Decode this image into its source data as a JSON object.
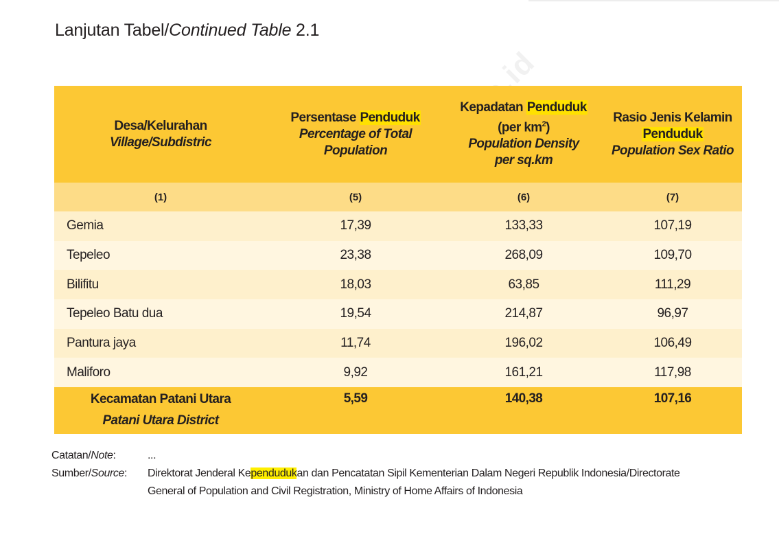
{
  "page": {
    "title_id": "Lanjutan Tabel/",
    "title_en": "Continued Table",
    "title_num": " 2.1",
    "watermark": "https://haltengkab.bps.go.id"
  },
  "colors": {
    "header_bg": "#fcc834",
    "subheader_bg": "#fddc87",
    "row_alt_a": "#fef0cc",
    "row_alt_b": "#fff6e0",
    "highlight": "#ffe100"
  },
  "table": {
    "headers": [
      {
        "id": "Desa/Kelurahan",
        "en": "Village/Subdistric"
      },
      {
        "id_pre": "Persentase ",
        "id_hl": "Penduduk",
        "en1": "Percentage of Total",
        "en2": "Population"
      },
      {
        "id_pre": "Kepadatan ",
        "id_hl": "Penduduk",
        "unit_pre": "(per km",
        "unit_sup": "2",
        "unit_post": ")",
        "en1": "Population Density",
        "en2": "per sq.km"
      },
      {
        "id1": "Rasio Jenis Kelamin",
        "id_hl": "Penduduk",
        "en": "Population Sex Ratio"
      }
    ],
    "column_numbers": [
      "(1)",
      "(5)",
      "(6)",
      "(7)"
    ],
    "rows": [
      {
        "village": "Gemia",
        "pct": "17,39",
        "density": "133,33",
        "sex_ratio": "107,19"
      },
      {
        "village": "Tepeleo",
        "pct": "23,38",
        "density": "268,09",
        "sex_ratio": "109,70"
      },
      {
        "village": "Bilifitu",
        "pct": "18,03",
        "density": "63,85",
        "sex_ratio": "111,29"
      },
      {
        "village": "Tepeleo Batu dua",
        "pct": "19,54",
        "density": "214,87",
        "sex_ratio": "96,97"
      },
      {
        "village": "Pantura jaya",
        "pct": "11,74",
        "density": "196,02",
        "sex_ratio": "106,49"
      },
      {
        "village": "Maliforo",
        "pct": "9,92",
        "density": "161,21",
        "sex_ratio": "117,98"
      }
    ],
    "total": {
      "label_id": "Kecamatan Patani Utara",
      "label_en": "Patani Utara  District",
      "pct": "5,59",
      "density": "140,38",
      "sex_ratio": "107,16"
    }
  },
  "notes": {
    "note_label_id": "Catatan/",
    "note_label_en": "Note",
    "note_colon": ":",
    "note_value": "...",
    "source_label_id": "Sumber/",
    "source_label_en": "Source",
    "source_colon": ":",
    "source_pre": "Direktorat Jenderal Ke",
    "source_hl": "penduduk",
    "source_post": "an dan Pencatatan Sipil Kementerian Dalam Negeri Republik Indonesia/Directorate",
    "source_line2": "General of Population and Civil Registration, Ministry of Home Affairs of Indonesia"
  }
}
